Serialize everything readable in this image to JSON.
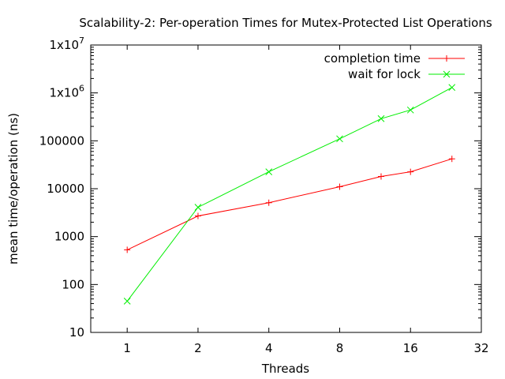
{
  "chart_data": {
    "type": "line",
    "title": "Scalability-2: Per-operation Times for Mutex-Protected List Operations",
    "xlabel": "Threads",
    "ylabel": "mean time/operation (ns)",
    "x_scale": "log2",
    "y_scale": "log10",
    "xlim": [
      0.7,
      32
    ],
    "ylim": [
      10,
      10000000
    ],
    "x_ticks": [
      {
        "value": 1,
        "label": "1"
      },
      {
        "value": 2,
        "label": "2"
      },
      {
        "value": 4,
        "label": "4"
      },
      {
        "value": 8,
        "label": "8"
      },
      {
        "value": 16,
        "label": "16"
      },
      {
        "value": 32,
        "label": "32"
      }
    ],
    "y_ticks": [
      {
        "value": 10,
        "label": "10"
      },
      {
        "value": 100,
        "label": "100"
      },
      {
        "value": 1000,
        "label": "1000"
      },
      {
        "value": 10000,
        "label": "10000"
      },
      {
        "value": 100000,
        "label": "100000"
      },
      {
        "value": 1000000,
        "label": "1x10",
        "sup": "6"
      },
      {
        "value": 10000000,
        "label": "1x10",
        "sup": "7"
      }
    ],
    "legend_position": "top-right",
    "grid": false,
    "series": [
      {
        "name": "completion time",
        "color": "#ff0000",
        "marker": "plus",
        "x": [
          1,
          2,
          4,
          8,
          12,
          16,
          24
        ],
        "y": [
          530,
          2700,
          5100,
          11000,
          18000,
          22500,
          42000
        ]
      },
      {
        "name": "wait for lock",
        "color": "#00ee00",
        "marker": "cross",
        "x": [
          1,
          2,
          4,
          8,
          12,
          16,
          24
        ],
        "y": [
          45,
          4100,
          22500,
          110000,
          290000,
          440000,
          1300000
        ]
      }
    ]
  }
}
